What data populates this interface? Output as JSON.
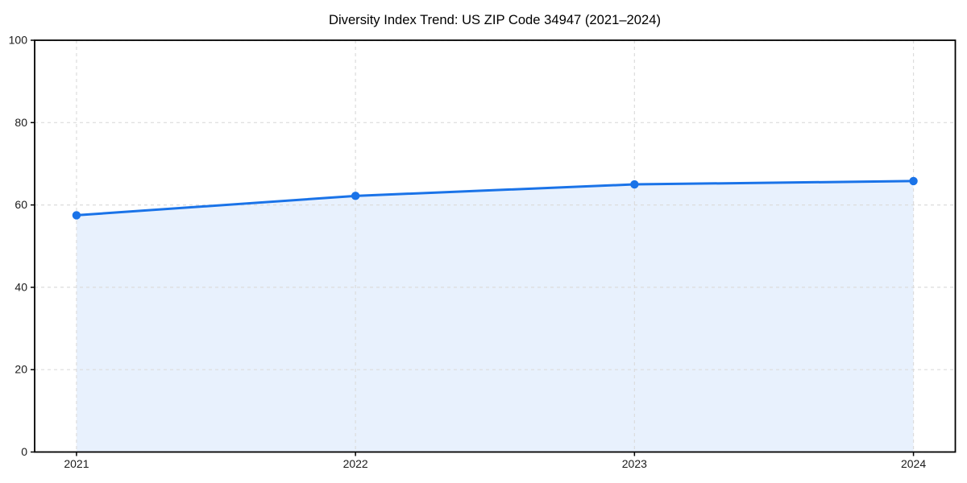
{
  "chart_data": {
    "type": "line",
    "title": "Diversity Index Trend: US ZIP Code 34947 (2021–2024)",
    "x": [
      2021,
      2022,
      2023,
      2024
    ],
    "series": [
      {
        "name": "Diversity Index",
        "values": [
          57.5,
          62.2,
          65.0,
          65.8
        ]
      }
    ],
    "xlabel": "",
    "ylabel": "",
    "xlim": [
      2020.85,
      2024.15
    ],
    "ylim": [
      0,
      100
    ],
    "xticks": [
      2021,
      2022,
      2023,
      2024
    ],
    "yticks": [
      0,
      20,
      40,
      60,
      80,
      100
    ],
    "grid": true,
    "grid_style": "dashed",
    "area_fill": true,
    "legend_position": "none",
    "colors": {
      "line": "#1a73e8",
      "marker": "#1a73e8",
      "fill": "#1a73e8",
      "fill_opacity": 0.1,
      "grid": "#dcdcdc",
      "spine": "#000000",
      "tick": "#000000",
      "tick_label": "#1a1a1a",
      "title": "#000000",
      "background": "#ffffff"
    }
  }
}
